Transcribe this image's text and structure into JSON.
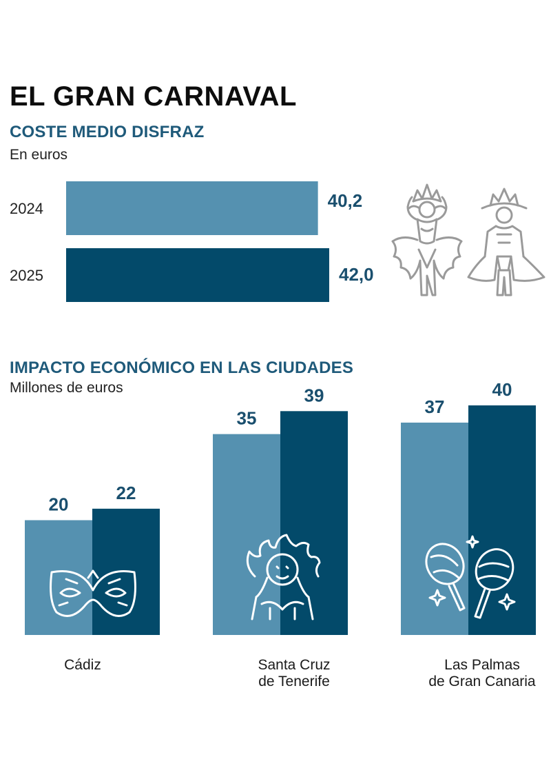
{
  "title": "EL GRAN CARNAVAL",
  "colors": {
    "light": "#5591b0",
    "dark": "#034a6a",
    "value_text": "#1a4f6e",
    "icon_gray": "#9a9a9a"
  },
  "chart_data": [
    {
      "type": "bar",
      "orientation": "horizontal",
      "title": "COSTE MEDIO DISFRAZ",
      "subtitle": "En euros",
      "categories": [
        "2024",
        "2025"
      ],
      "values": [
        40.2,
        42.0
      ],
      "value_labels": [
        "40,2",
        "42,0"
      ],
      "icons": [
        "female-carnival-dancer-icon",
        "male-carnival-dancer-icon"
      ]
    },
    {
      "type": "bar",
      "orientation": "vertical",
      "title": "IMPACTO ECONÓMICO EN LAS CIUDADES",
      "subtitle": "Millones de euros",
      "categories": [
        {
          "line1": "Cádiz",
          "line2": ""
        },
        {
          "line1": "Santa Cruz",
          "line2": "de Tenerife"
        },
        {
          "line1": "Las Palmas",
          "line2": "de Gran Canaria"
        }
      ],
      "series": [
        {
          "values": [
            20,
            35,
            37
          ]
        },
        {
          "values": [
            22,
            39,
            40
          ]
        }
      ],
      "icons": [
        "carnival-mask-icon",
        "carnival-queen-icon",
        "maracas-icon"
      ]
    }
  ]
}
